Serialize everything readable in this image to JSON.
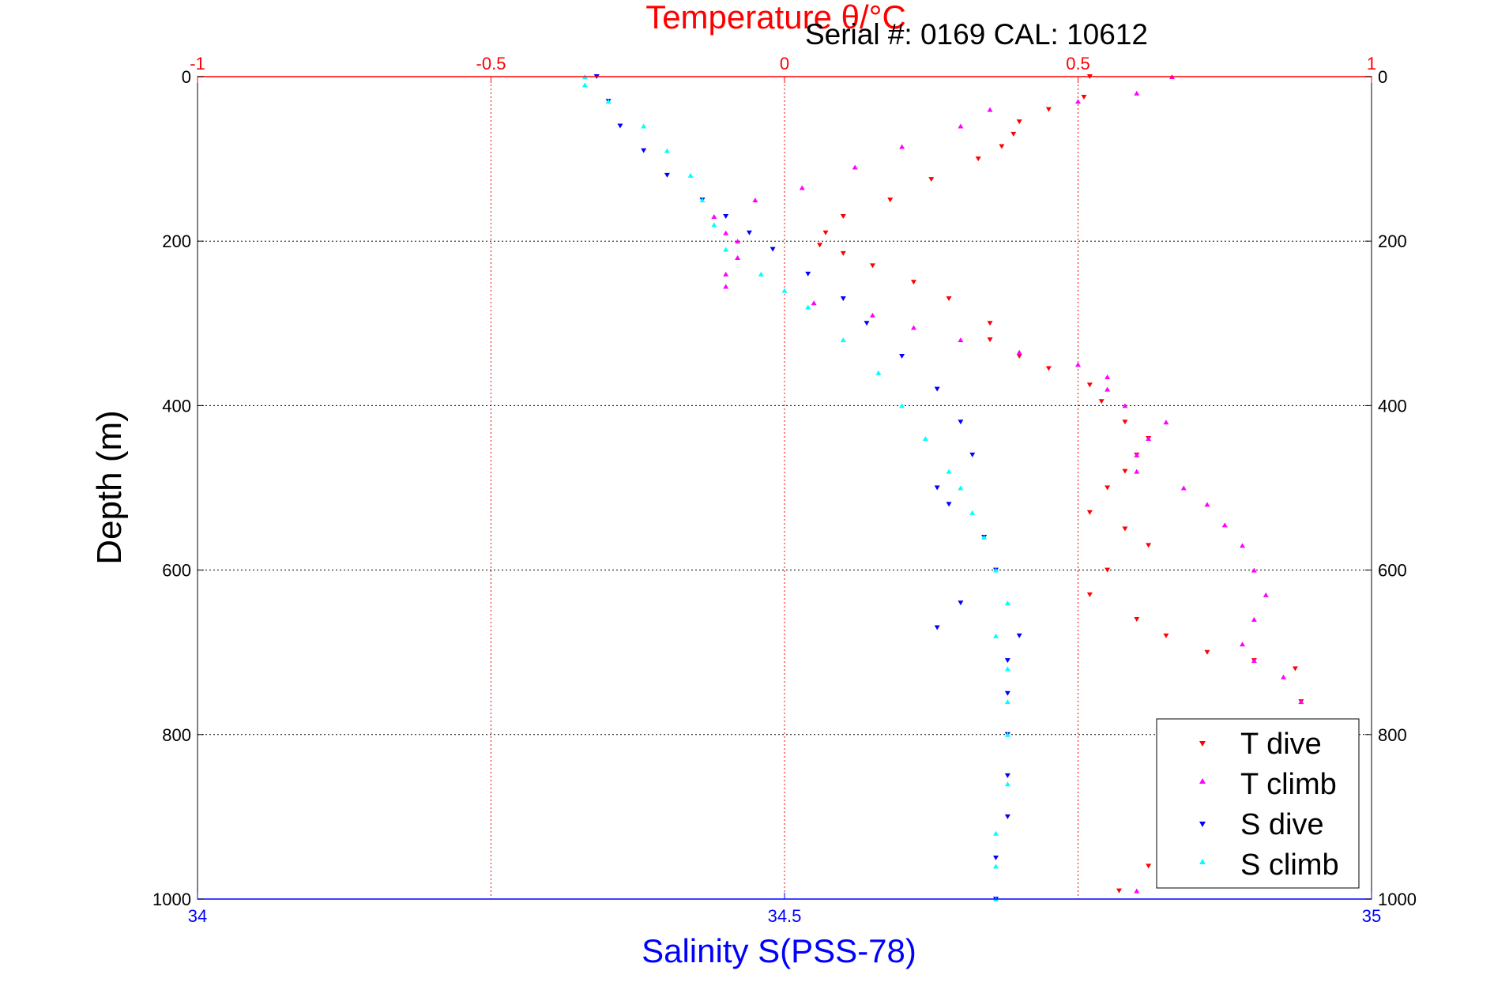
{
  "chart_data": {
    "type": "scatter",
    "title": "Temperature θ/°C",
    "subtitle": "Serial #: 0169 CAL: 10612",
    "xlabel": "Salinity S(PSS-78)",
    "ylabel": "Depth (m)",
    "x_top": {
      "label": "Temperature θ/°C",
      "lim": [
        -1,
        1
      ],
      "ticks": [
        "-1",
        "-0.5",
        "0",
        "0.5",
        "1"
      ]
    },
    "x_bottom": {
      "label": "Salinity S(PSS-78)",
      "lim": [
        34,
        35
      ],
      "ticks": [
        "34",
        "34.5",
        "35"
      ]
    },
    "y": {
      "label": "Depth (m)",
      "lim": [
        0,
        1000
      ],
      "reversed": true,
      "ticks": [
        "0",
        "200",
        "400",
        "600",
        "800",
        "1000"
      ]
    },
    "grid": true,
    "legend_position": "bottom-right",
    "series": [
      {
        "name": "T dive",
        "axis": "temperature",
        "color": "#ff0000",
        "marker": "triangle-down",
        "points": [
          [
            0.52,
            0
          ],
          [
            0.51,
            25
          ],
          [
            0.45,
            40
          ],
          [
            0.4,
            55
          ],
          [
            0.39,
            70
          ],
          [
            0.37,
            85
          ],
          [
            0.33,
            100
          ],
          [
            0.25,
            125
          ],
          [
            0.18,
            150
          ],
          [
            0.1,
            170
          ],
          [
            0.07,
            190
          ],
          [
            0.06,
            205
          ],
          [
            0.1,
            215
          ],
          [
            0.15,
            230
          ],
          [
            0.22,
            250
          ],
          [
            0.28,
            270
          ],
          [
            0.35,
            300
          ],
          [
            0.35,
            320
          ],
          [
            0.4,
            340
          ],
          [
            0.45,
            355
          ],
          [
            0.52,
            375
          ],
          [
            0.54,
            395
          ],
          [
            0.58,
            420
          ],
          [
            0.62,
            440
          ],
          [
            0.6,
            460
          ],
          [
            0.58,
            480
          ],
          [
            0.55,
            500
          ],
          [
            0.52,
            530
          ],
          [
            0.58,
            550
          ],
          [
            0.62,
            570
          ],
          [
            0.55,
            600
          ],
          [
            0.52,
            630
          ],
          [
            0.6,
            660
          ],
          [
            0.65,
            680
          ],
          [
            0.72,
            700
          ],
          [
            0.8,
            710
          ],
          [
            0.87,
            720
          ],
          [
            0.88,
            760
          ],
          [
            0.88,
            800
          ],
          [
            0.8,
            860
          ],
          [
            0.7,
            930
          ],
          [
            0.62,
            960
          ],
          [
            0.57,
            990
          ]
        ]
      },
      {
        "name": "T climb",
        "axis": "temperature",
        "color": "#ff00ff",
        "marker": "triangle-up",
        "points": [
          [
            0.66,
            0
          ],
          [
            0.6,
            20
          ],
          [
            0.5,
            30
          ],
          [
            0.35,
            40
          ],
          [
            0.3,
            60
          ],
          [
            0.2,
            85
          ],
          [
            0.12,
            110
          ],
          [
            0.03,
            135
          ],
          [
            -0.05,
            150
          ],
          [
            -0.12,
            170
          ],
          [
            -0.1,
            190
          ],
          [
            -0.08,
            200
          ],
          [
            -0.08,
            220
          ],
          [
            -0.1,
            240
          ],
          [
            -0.1,
            255
          ],
          [
            0.05,
            275
          ],
          [
            0.15,
            290
          ],
          [
            0.22,
            305
          ],
          [
            0.3,
            320
          ],
          [
            0.4,
            335
          ],
          [
            0.5,
            350
          ],
          [
            0.55,
            365
          ],
          [
            0.55,
            380
          ],
          [
            0.58,
            400
          ],
          [
            0.65,
            420
          ],
          [
            0.62,
            440
          ],
          [
            0.6,
            460
          ],
          [
            0.6,
            480
          ],
          [
            0.68,
            500
          ],
          [
            0.72,
            520
          ],
          [
            0.75,
            545
          ],
          [
            0.78,
            570
          ],
          [
            0.8,
            600
          ],
          [
            0.82,
            630
          ],
          [
            0.8,
            660
          ],
          [
            0.78,
            690
          ],
          [
            0.8,
            710
          ],
          [
            0.85,
            730
          ],
          [
            0.88,
            760
          ],
          [
            0.87,
            800
          ],
          [
            0.82,
            880
          ],
          [
            0.75,
            930
          ],
          [
            0.68,
            960
          ],
          [
            0.6,
            990
          ]
        ]
      },
      {
        "name": "S dive",
        "axis": "salinity",
        "color": "#0000ff",
        "marker": "triangle-down",
        "points": [
          [
            34.34,
            0
          ],
          [
            34.35,
            30
          ],
          [
            34.36,
            60
          ],
          [
            34.38,
            90
          ],
          [
            34.4,
            120
          ],
          [
            34.43,
            150
          ],
          [
            34.45,
            170
          ],
          [
            34.47,
            190
          ],
          [
            34.49,
            210
          ],
          [
            34.52,
            240
          ],
          [
            34.55,
            270
          ],
          [
            34.57,
            300
          ],
          [
            34.6,
            340
          ],
          [
            34.63,
            380
          ],
          [
            34.65,
            420
          ],
          [
            34.66,
            460
          ],
          [
            34.63,
            500
          ],
          [
            34.64,
            520
          ],
          [
            34.67,
            560
          ],
          [
            34.68,
            600
          ],
          [
            34.65,
            640
          ],
          [
            34.63,
            670
          ],
          [
            34.7,
            680
          ],
          [
            34.69,
            710
          ],
          [
            34.69,
            750
          ],
          [
            34.69,
            800
          ],
          [
            34.69,
            850
          ],
          [
            34.69,
            900
          ],
          [
            34.68,
            950
          ],
          [
            34.68,
            1000
          ]
        ]
      },
      {
        "name": "S climb",
        "axis": "salinity",
        "color": "#00ffff",
        "marker": "triangle-up",
        "points": [
          [
            34.33,
            0
          ],
          [
            34.33,
            10
          ],
          [
            34.35,
            30
          ],
          [
            34.38,
            60
          ],
          [
            34.4,
            90
          ],
          [
            34.42,
            120
          ],
          [
            34.43,
            150
          ],
          [
            34.44,
            180
          ],
          [
            34.45,
            210
          ],
          [
            34.48,
            240
          ],
          [
            34.5,
            260
          ],
          [
            34.52,
            280
          ],
          [
            34.55,
            320
          ],
          [
            34.58,
            360
          ],
          [
            34.6,
            400
          ],
          [
            34.62,
            440
          ],
          [
            34.64,
            480
          ],
          [
            34.65,
            500
          ],
          [
            34.66,
            530
          ],
          [
            34.67,
            560
          ],
          [
            34.68,
            600
          ],
          [
            34.69,
            640
          ],
          [
            34.68,
            680
          ],
          [
            34.69,
            720
          ],
          [
            34.69,
            760
          ],
          [
            34.69,
            800
          ],
          [
            34.69,
            860
          ],
          [
            34.68,
            920
          ],
          [
            34.68,
            960
          ],
          [
            34.68,
            1000
          ]
        ]
      }
    ]
  }
}
